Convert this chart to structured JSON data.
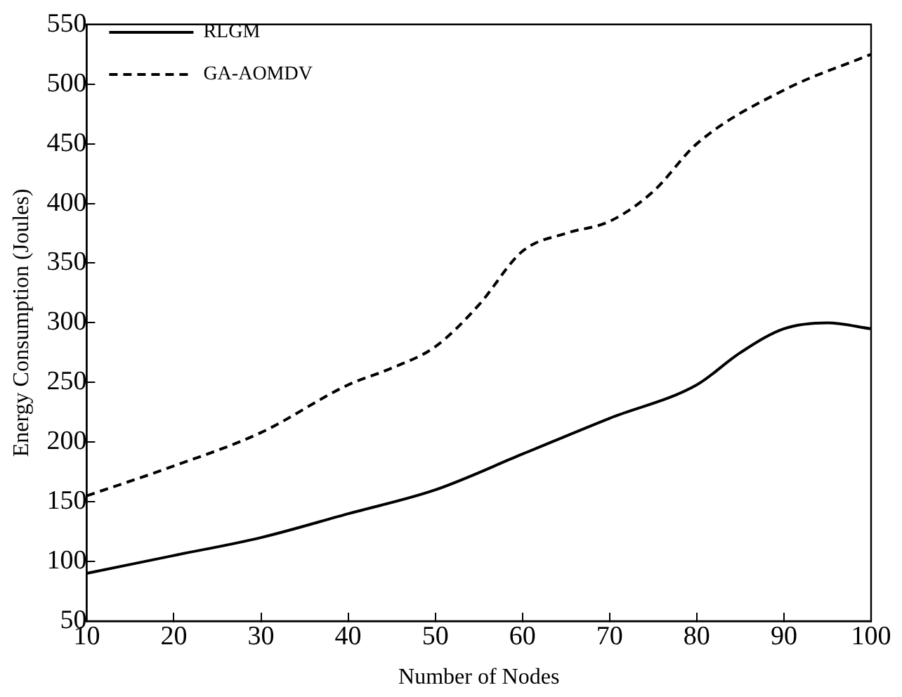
{
  "chart_data": {
    "type": "line",
    "xlabel": "Number of Nodes",
    "ylabel": "Energy Consumption (Joules)",
    "xlim": [
      10,
      100
    ],
    "xticks": [
      10,
      20,
      30,
      40,
      50,
      60,
      70,
      80,
      90,
      100
    ],
    "ylim": [
      50,
      550
    ],
    "yticks": [
      50,
      100,
      150,
      200,
      250,
      300,
      350,
      400,
      450,
      500,
      550
    ],
    "grid": false,
    "legend": "top left",
    "marker": "none",
    "series": [
      {
        "name": "RLGM",
        "color": "#000000",
        "line_style": "solid",
        "x": [
          10,
          20,
          30,
          40,
          50,
          60,
          70,
          80,
          85,
          90,
          95,
          100
        ],
        "values": [
          90,
          105,
          120,
          140,
          160,
          190,
          220,
          248,
          275,
          295,
          300,
          295
        ]
      },
      {
        "name": "GA-AOMDV",
        "color": "#000000",
        "line_style": "dashed",
        "x": [
          10,
          20,
          30,
          40,
          45,
          50,
          55,
          60,
          65,
          70,
          75,
          80,
          90,
          100
        ],
        "values": [
          155,
          180,
          208,
          248,
          262,
          280,
          315,
          360,
          375,
          385,
          410,
          450,
          495,
          525
        ]
      }
    ]
  }
}
